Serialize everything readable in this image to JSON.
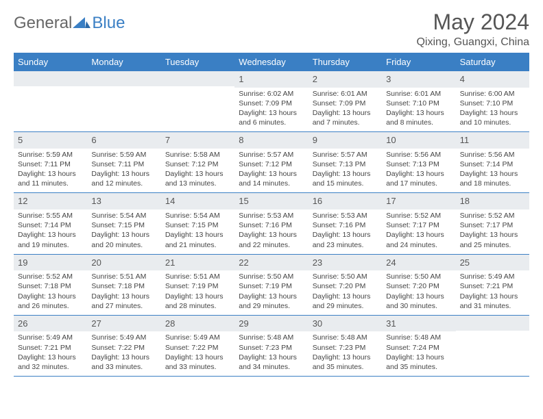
{
  "logo": {
    "text1": "General",
    "text2": "Blue"
  },
  "title": "May 2024",
  "location": "Qixing, Guangxi, China",
  "colors": {
    "header_bg": "#3a7fc4",
    "header_text": "#ffffff",
    "daynum_bg": "#e9ecef",
    "text": "#444444",
    "rule": "#3a7fc4",
    "page_bg": "#ffffff"
  },
  "weekdays": [
    "Sunday",
    "Monday",
    "Tuesday",
    "Wednesday",
    "Thursday",
    "Friday",
    "Saturday"
  ],
  "weeks": [
    [
      {
        "day": "",
        "lines": []
      },
      {
        "day": "",
        "lines": []
      },
      {
        "day": "",
        "lines": []
      },
      {
        "day": "1",
        "lines": [
          "Sunrise: 6:02 AM",
          "Sunset: 7:09 PM",
          "Daylight: 13 hours",
          "and 6 minutes."
        ]
      },
      {
        "day": "2",
        "lines": [
          "Sunrise: 6:01 AM",
          "Sunset: 7:09 PM",
          "Daylight: 13 hours",
          "and 7 minutes."
        ]
      },
      {
        "day": "3",
        "lines": [
          "Sunrise: 6:01 AM",
          "Sunset: 7:10 PM",
          "Daylight: 13 hours",
          "and 8 minutes."
        ]
      },
      {
        "day": "4",
        "lines": [
          "Sunrise: 6:00 AM",
          "Sunset: 7:10 PM",
          "Daylight: 13 hours",
          "and 10 minutes."
        ]
      }
    ],
    [
      {
        "day": "5",
        "lines": [
          "Sunrise: 5:59 AM",
          "Sunset: 7:11 PM",
          "Daylight: 13 hours",
          "and 11 minutes."
        ]
      },
      {
        "day": "6",
        "lines": [
          "Sunrise: 5:59 AM",
          "Sunset: 7:11 PM",
          "Daylight: 13 hours",
          "and 12 minutes."
        ]
      },
      {
        "day": "7",
        "lines": [
          "Sunrise: 5:58 AM",
          "Sunset: 7:12 PM",
          "Daylight: 13 hours",
          "and 13 minutes."
        ]
      },
      {
        "day": "8",
        "lines": [
          "Sunrise: 5:57 AM",
          "Sunset: 7:12 PM",
          "Daylight: 13 hours",
          "and 14 minutes."
        ]
      },
      {
        "day": "9",
        "lines": [
          "Sunrise: 5:57 AM",
          "Sunset: 7:13 PM",
          "Daylight: 13 hours",
          "and 15 minutes."
        ]
      },
      {
        "day": "10",
        "lines": [
          "Sunrise: 5:56 AM",
          "Sunset: 7:13 PM",
          "Daylight: 13 hours",
          "and 17 minutes."
        ]
      },
      {
        "day": "11",
        "lines": [
          "Sunrise: 5:56 AM",
          "Sunset: 7:14 PM",
          "Daylight: 13 hours",
          "and 18 minutes."
        ]
      }
    ],
    [
      {
        "day": "12",
        "lines": [
          "Sunrise: 5:55 AM",
          "Sunset: 7:14 PM",
          "Daylight: 13 hours",
          "and 19 minutes."
        ]
      },
      {
        "day": "13",
        "lines": [
          "Sunrise: 5:54 AM",
          "Sunset: 7:15 PM",
          "Daylight: 13 hours",
          "and 20 minutes."
        ]
      },
      {
        "day": "14",
        "lines": [
          "Sunrise: 5:54 AM",
          "Sunset: 7:15 PM",
          "Daylight: 13 hours",
          "and 21 minutes."
        ]
      },
      {
        "day": "15",
        "lines": [
          "Sunrise: 5:53 AM",
          "Sunset: 7:16 PM",
          "Daylight: 13 hours",
          "and 22 minutes."
        ]
      },
      {
        "day": "16",
        "lines": [
          "Sunrise: 5:53 AM",
          "Sunset: 7:16 PM",
          "Daylight: 13 hours",
          "and 23 minutes."
        ]
      },
      {
        "day": "17",
        "lines": [
          "Sunrise: 5:52 AM",
          "Sunset: 7:17 PM",
          "Daylight: 13 hours",
          "and 24 minutes."
        ]
      },
      {
        "day": "18",
        "lines": [
          "Sunrise: 5:52 AM",
          "Sunset: 7:17 PM",
          "Daylight: 13 hours",
          "and 25 minutes."
        ]
      }
    ],
    [
      {
        "day": "19",
        "lines": [
          "Sunrise: 5:52 AM",
          "Sunset: 7:18 PM",
          "Daylight: 13 hours",
          "and 26 minutes."
        ]
      },
      {
        "day": "20",
        "lines": [
          "Sunrise: 5:51 AM",
          "Sunset: 7:18 PM",
          "Daylight: 13 hours",
          "and 27 minutes."
        ]
      },
      {
        "day": "21",
        "lines": [
          "Sunrise: 5:51 AM",
          "Sunset: 7:19 PM",
          "Daylight: 13 hours",
          "and 28 minutes."
        ]
      },
      {
        "day": "22",
        "lines": [
          "Sunrise: 5:50 AM",
          "Sunset: 7:19 PM",
          "Daylight: 13 hours",
          "and 29 minutes."
        ]
      },
      {
        "day": "23",
        "lines": [
          "Sunrise: 5:50 AM",
          "Sunset: 7:20 PM",
          "Daylight: 13 hours",
          "and 29 minutes."
        ]
      },
      {
        "day": "24",
        "lines": [
          "Sunrise: 5:50 AM",
          "Sunset: 7:20 PM",
          "Daylight: 13 hours",
          "and 30 minutes."
        ]
      },
      {
        "day": "25",
        "lines": [
          "Sunrise: 5:49 AM",
          "Sunset: 7:21 PM",
          "Daylight: 13 hours",
          "and 31 minutes."
        ]
      }
    ],
    [
      {
        "day": "26",
        "lines": [
          "Sunrise: 5:49 AM",
          "Sunset: 7:21 PM",
          "Daylight: 13 hours",
          "and 32 minutes."
        ]
      },
      {
        "day": "27",
        "lines": [
          "Sunrise: 5:49 AM",
          "Sunset: 7:22 PM",
          "Daylight: 13 hours",
          "and 33 minutes."
        ]
      },
      {
        "day": "28",
        "lines": [
          "Sunrise: 5:49 AM",
          "Sunset: 7:22 PM",
          "Daylight: 13 hours",
          "and 33 minutes."
        ]
      },
      {
        "day": "29",
        "lines": [
          "Sunrise: 5:48 AM",
          "Sunset: 7:23 PM",
          "Daylight: 13 hours",
          "and 34 minutes."
        ]
      },
      {
        "day": "30",
        "lines": [
          "Sunrise: 5:48 AM",
          "Sunset: 7:23 PM",
          "Daylight: 13 hours",
          "and 35 minutes."
        ]
      },
      {
        "day": "31",
        "lines": [
          "Sunrise: 5:48 AM",
          "Sunset: 7:24 PM",
          "Daylight: 13 hours",
          "and 35 minutes."
        ]
      },
      {
        "day": "",
        "lines": []
      }
    ]
  ]
}
